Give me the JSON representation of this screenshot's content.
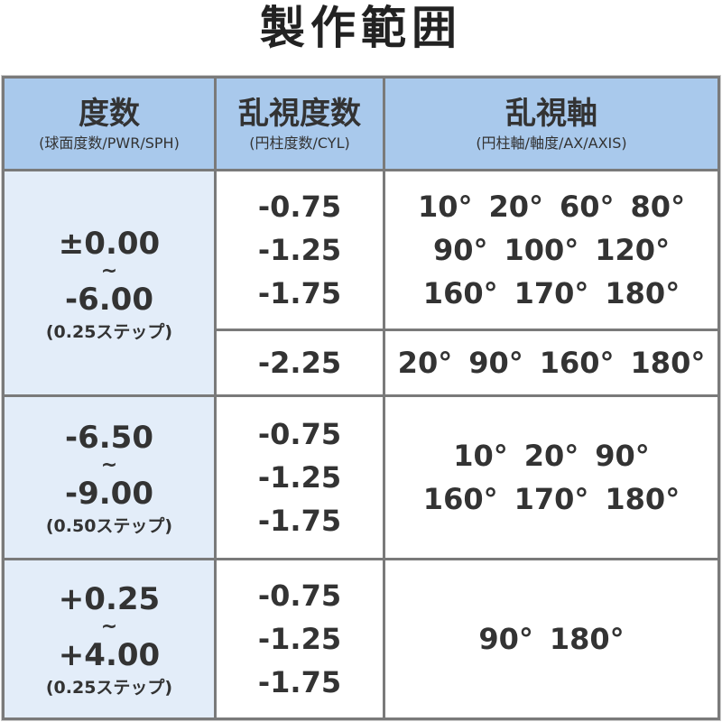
{
  "title": "製作範囲",
  "header": {
    "sph": {
      "label": "度数",
      "sub": "(球面度数/PWR/SPH)"
    },
    "cyl": {
      "label": "乱視度数",
      "sub": "(円柱度数/CYL)"
    },
    "axis": {
      "label": "乱視軸",
      "sub": "(円柱軸/軸度/AX/AXIS)"
    }
  },
  "colors": {
    "header_bg": "#a9c9ec",
    "sph_bg": "#e3edf9",
    "border": "#7a7a7a"
  },
  "rows": [
    {
      "sph_from": "±0.00",
      "tilde": "~",
      "sph_to": "-6.00",
      "step": "(0.25ステップ)",
      "groups": [
        {
          "cyl": [
            "-0.75",
            "-1.25",
            "-1.75"
          ],
          "axis": [
            [
              "10°",
              "20°",
              "60°",
              "80°"
            ],
            [
              "90°",
              "100°",
              "120°"
            ],
            [
              "160°",
              "170°",
              "180°"
            ]
          ]
        },
        {
          "cyl": [
            "-2.25"
          ],
          "axis": [
            [
              "20°",
              "90°",
              "160°",
              "180°"
            ]
          ]
        }
      ]
    },
    {
      "sph_from": "-6.50",
      "tilde": "~",
      "sph_to": "-9.00",
      "step": "(0.50ステップ)",
      "groups": [
        {
          "cyl": [
            "-0.75",
            "-1.25",
            "-1.75"
          ],
          "axis": [
            [
              "10°",
              "20°",
              "90°"
            ],
            [
              "160°",
              "170°",
              "180°"
            ]
          ]
        }
      ]
    },
    {
      "sph_from": "+0.25",
      "tilde": "~",
      "sph_to": "+4.00",
      "step": "(0.25ステップ)",
      "groups": [
        {
          "cyl": [
            "-0.75",
            "-1.25",
            "-1.75"
          ],
          "axis": [
            [
              "90°",
              "180°"
            ]
          ]
        }
      ]
    }
  ]
}
